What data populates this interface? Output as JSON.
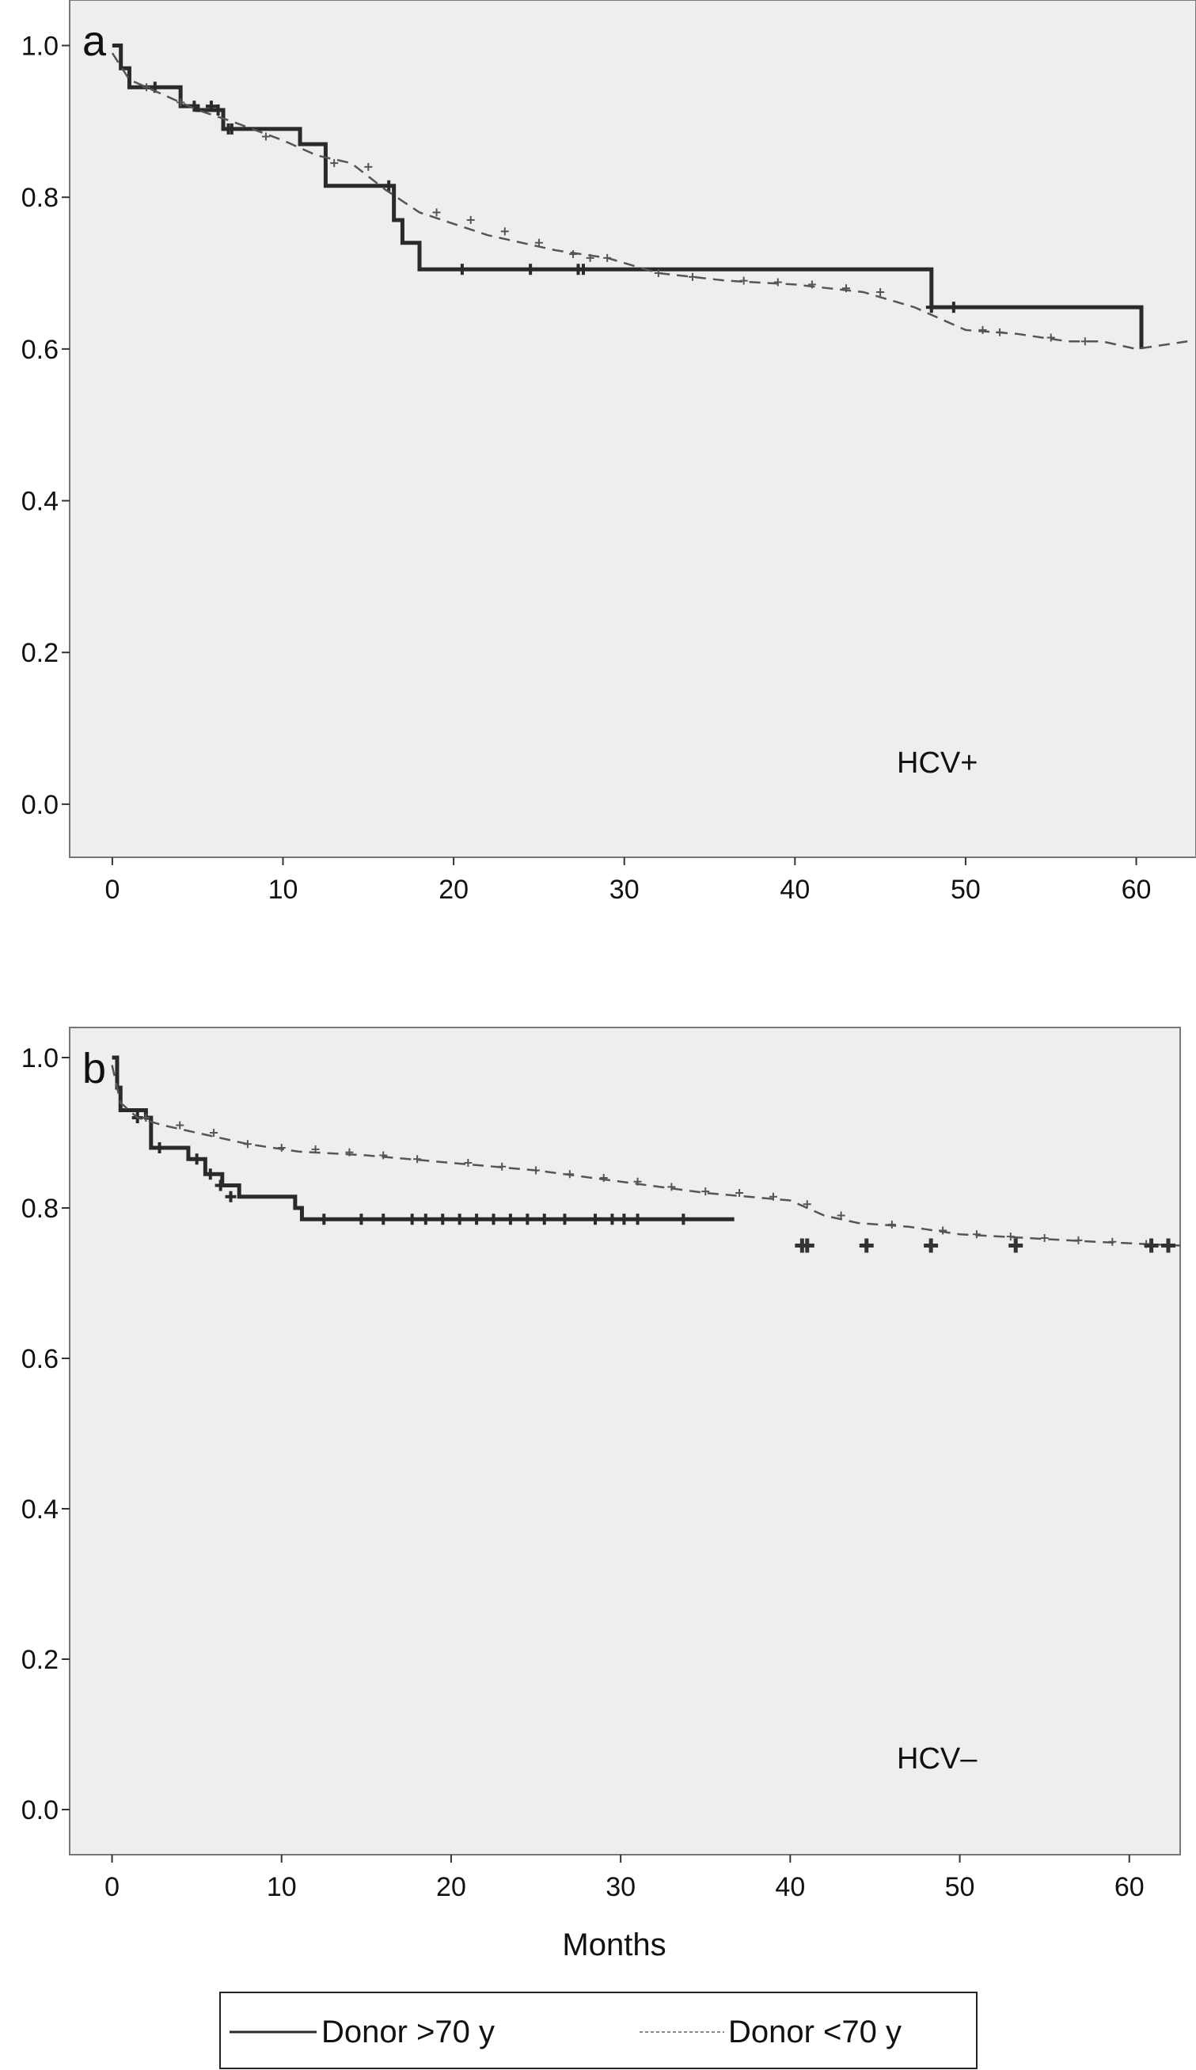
{
  "chart_data": [
    {
      "type": "line",
      "panel_label": "a",
      "annotation": "HCV+",
      "xlabel": "",
      "ylabel": "",
      "xlim": [
        -2.5,
        63.5
      ],
      "ylim": [
        -0.07,
        1.06
      ],
      "x_ticks": [
        0,
        10,
        20,
        30,
        40,
        50,
        60
      ],
      "x_tick_labels": [
        "0",
        "10",
        "20",
        "30",
        "40",
        "50",
        "60"
      ],
      "y_ticks": [
        0.0,
        0.2,
        0.4,
        0.6,
        0.8,
        1.0
      ],
      "y_tick_labels": [
        "0.0",
        "0.2",
        "0.4",
        "0.6",
        "0.8",
        "1.0"
      ],
      "grid": false,
      "background": "#eeeeee",
      "series": [
        {
          "name": "Donor >70 y",
          "style": "solid",
          "color": "#2a2a2a",
          "step_x": [
            0,
            0.5,
            1.0,
            4.0,
            5.0,
            6.5,
            11.0,
            12.5,
            16.5,
            17.0,
            18.0,
            48.0,
            60.3
          ],
          "step_y": [
            1.0,
            0.97,
            0.945,
            0.92,
            0.915,
            0.89,
            0.87,
            0.815,
            0.77,
            0.74,
            0.705,
            0.655,
            0.6
          ],
          "end_x": 60.3,
          "censor_x": [
            2.5,
            4.8,
            5.8,
            6.2,
            6.8,
            7.0,
            16.2,
            20.5,
            24.5,
            27.3,
            27.6,
            48.0,
            49.3
          ],
          "censor_y": [
            0.945,
            0.92,
            0.92,
            0.915,
            0.89,
            0.89,
            0.815,
            0.705,
            0.705,
            0.705,
            0.705,
            0.655,
            0.655
          ]
        },
        {
          "name": "Donor <70 y",
          "style": "dashed",
          "color": "#555555",
          "points_x": [
            0,
            1,
            3,
            5,
            7,
            10,
            12,
            14,
            16,
            18,
            22,
            26,
            29,
            32,
            36,
            40,
            44,
            47,
            48,
            50,
            53,
            56,
            58,
            60,
            63
          ],
          "points_y": [
            0.99,
            0.955,
            0.935,
            0.915,
            0.9,
            0.875,
            0.855,
            0.845,
            0.81,
            0.78,
            0.75,
            0.73,
            0.72,
            0.7,
            0.69,
            0.685,
            0.675,
            0.655,
            0.645,
            0.625,
            0.62,
            0.61,
            0.61,
            0.6,
            0.61
          ],
          "censor_x": [
            2,
            4,
            9,
            13,
            15,
            19,
            21,
            23,
            25,
            27,
            28,
            29,
            32,
            34,
            37,
            39,
            41,
            43,
            45,
            51,
            52,
            55,
            57
          ],
          "censor_y": [
            0.945,
            0.925,
            0.88,
            0.845,
            0.84,
            0.78,
            0.77,
            0.755,
            0.74,
            0.725,
            0.72,
            0.72,
            0.7,
            0.695,
            0.69,
            0.688,
            0.685,
            0.68,
            0.675,
            0.625,
            0.622,
            0.615,
            0.61
          ]
        }
      ]
    },
    {
      "type": "line",
      "panel_label": "b",
      "annotation": "HCV–",
      "xlabel": "Months",
      "ylabel": "",
      "xlim": [
        -2.5,
        63.0
      ],
      "ylim": [
        -0.06,
        1.04
      ],
      "x_ticks": [
        0,
        10,
        20,
        30,
        40,
        50,
        60
      ],
      "x_tick_labels": [
        "0",
        "10",
        "20",
        "30",
        "40",
        "50",
        "60"
      ],
      "y_ticks": [
        0.0,
        0.2,
        0.4,
        0.6,
        0.8,
        1.0
      ],
      "y_tick_labels": [
        "0.0",
        "0.2",
        "0.4",
        "0.6",
        "0.8",
        "1.0"
      ],
      "grid": false,
      "background": "#eeeeee",
      "series": [
        {
          "name": "Donor >70 y",
          "style": "solid",
          "color": "#2a2a2a",
          "step_x": [
            0,
            0.3,
            0.5,
            2.0,
            2.3,
            4.5,
            5.5,
            6.5,
            7.5,
            10.8,
            11.2
          ],
          "step_y": [
            1.0,
            0.96,
            0.93,
            0.92,
            0.88,
            0.865,
            0.845,
            0.83,
            0.815,
            0.8,
            0.785
          ],
          "end_x": 36.7,
          "censor_x": [
            1.5,
            2.8,
            5.0,
            5.8,
            6.4,
            7.0,
            12.5,
            14.7,
            16.0,
            17.7,
            18.5,
            19.5,
            20.5,
            21.5,
            22.5,
            23.5,
            24.5,
            25.5,
            26.7,
            28.5,
            29.5,
            30.2,
            31.0,
            33.7
          ],
          "censor_y": [
            0.92,
            0.88,
            0.865,
            0.845,
            0.83,
            0.815,
            0.785,
            0.785,
            0.785,
            0.785,
            0.785,
            0.785,
            0.785,
            0.785,
            0.785,
            0.785,
            0.785,
            0.785,
            0.785,
            0.785,
            0.785,
            0.785,
            0.785,
            0.785
          ]
        },
        {
          "name": "Donor <70 y",
          "style": "dashed",
          "color": "#555555",
          "points_x": [
            0,
            0.5,
            1.5,
            3,
            5,
            8,
            11,
            15,
            20,
            25,
            30,
            35,
            40,
            42,
            44,
            47,
            50,
            54,
            58,
            63
          ],
          "points_y": [
            0.99,
            0.94,
            0.92,
            0.91,
            0.9,
            0.885,
            0.875,
            0.87,
            0.86,
            0.85,
            0.835,
            0.82,
            0.81,
            0.79,
            0.78,
            0.775,
            0.765,
            0.76,
            0.755,
            0.75
          ],
          "censor_x": [
            2,
            4,
            6,
            8,
            10,
            12,
            14,
            16,
            18,
            21,
            23,
            25,
            27,
            29,
            31,
            33,
            35,
            37,
            39,
            41,
            43,
            46,
            49,
            51,
            53,
            55,
            57,
            59,
            61
          ],
          "censor_y": [
            0.92,
            0.91,
            0.9,
            0.885,
            0.88,
            0.878,
            0.874,
            0.87,
            0.865,
            0.86,
            0.855,
            0.85,
            0.845,
            0.84,
            0.835,
            0.828,
            0.822,
            0.82,
            0.815,
            0.805,
            0.79,
            0.778,
            0.77,
            0.765,
            0.762,
            0.76,
            0.757,
            0.755,
            0.752
          ]
        }
      ],
      "extra_censor_x": [
        40.7,
        41.0,
        44.5,
        48.3,
        53.3,
        61.3,
        62.3
      ],
      "extra_censor_y": [
        0.75,
        0.75,
        0.75,
        0.75,
        0.75,
        0.75,
        0.75
      ]
    }
  ],
  "legend": {
    "items": [
      {
        "label": "Donor >70 y",
        "style": "solid"
      },
      {
        "label": "Donor <70 y",
        "style": "dashed"
      }
    ]
  }
}
